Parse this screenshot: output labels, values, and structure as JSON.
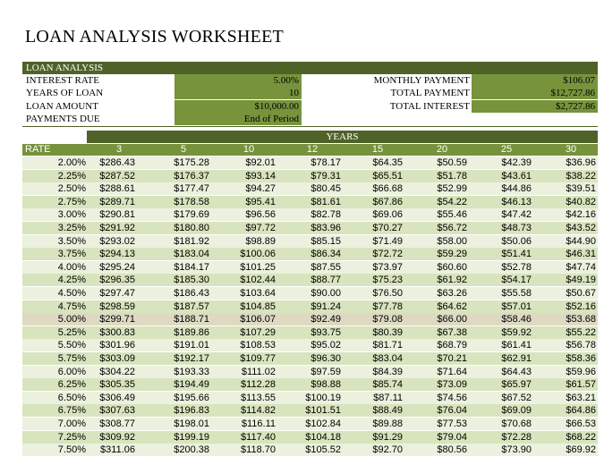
{
  "title": "LOAN ANALYSIS WORKSHEET",
  "analysis": {
    "header": "LOAN ANALYSIS",
    "left": [
      {
        "label": "INTEREST RATE",
        "value": "5.00%"
      },
      {
        "label": "YEARS OF LOAN",
        "value": "10"
      },
      {
        "label": "LOAN AMOUNT",
        "value": "$10,000.00"
      },
      {
        "label": "PAYMENTS DUE",
        "value": "End of Period"
      }
    ],
    "right": [
      {
        "label": "MONTHLY PAYMENT",
        "value": "$106.07"
      },
      {
        "label": "TOTAL PAYMENT",
        "value": "$12,727.86"
      },
      {
        "label": "TOTAL INTEREST",
        "value": "$2,727.86"
      }
    ]
  },
  "table": {
    "years_label": "YEARS",
    "rate_label": "RATE",
    "columns": [
      "3",
      "5",
      "10",
      "12",
      "15",
      "20",
      "25",
      "30"
    ],
    "rows": [
      {
        "rate": "2.00%",
        "values": [
          "$286.43",
          "$175.28",
          "$92.01",
          "$78.17",
          "$64.35",
          "$50.59",
          "$42.39",
          "$36.96"
        ]
      },
      {
        "rate": "2.25%",
        "values": [
          "$287.52",
          "$176.37",
          "$93.14",
          "$79.31",
          "$65.51",
          "$51.78",
          "$43.61",
          "$38.22"
        ]
      },
      {
        "rate": "2.50%",
        "values": [
          "$288.61",
          "$177.47",
          "$94.27",
          "$80.45",
          "$66.68",
          "$52.99",
          "$44.86",
          "$39.51"
        ]
      },
      {
        "rate": "2.75%",
        "values": [
          "$289.71",
          "$178.58",
          "$95.41",
          "$81.61",
          "$67.86",
          "$54.22",
          "$46.13",
          "$40.82"
        ]
      },
      {
        "rate": "3.00%",
        "values": [
          "$290.81",
          "$179.69",
          "$96.56",
          "$82.78",
          "$69.06",
          "$55.46",
          "$47.42",
          "$42.16"
        ]
      },
      {
        "rate": "3.25%",
        "values": [
          "$291.92",
          "$180.80",
          "$97.72",
          "$83.96",
          "$70.27",
          "$56.72",
          "$48.73",
          "$43.52"
        ]
      },
      {
        "rate": "3.50%",
        "values": [
          "$293.02",
          "$181.92",
          "$98.89",
          "$85.15",
          "$71.49",
          "$58.00",
          "$50.06",
          "$44.90"
        ]
      },
      {
        "rate": "3.75%",
        "values": [
          "$294.13",
          "$183.04",
          "$100.06",
          "$86.34",
          "$72.72",
          "$59.29",
          "$51.41",
          "$46.31"
        ]
      },
      {
        "rate": "4.00%",
        "values": [
          "$295.24",
          "$184.17",
          "$101.25",
          "$87.55",
          "$73.97",
          "$60.60",
          "$52.78",
          "$47.74"
        ]
      },
      {
        "rate": "4.25%",
        "values": [
          "$296.35",
          "$185.30",
          "$102.44",
          "$88.77",
          "$75.23",
          "$61.92",
          "$54.17",
          "$49.19"
        ]
      },
      {
        "rate": "4.50%",
        "values": [
          "$297.47",
          "$186.43",
          "$103.64",
          "$90.00",
          "$76.50",
          "$63.26",
          "$55.58",
          "$50.67"
        ]
      },
      {
        "rate": "4.75%",
        "values": [
          "$298.59",
          "$187.57",
          "$104.85",
          "$91.24",
          "$77.78",
          "$64.62",
          "$57.01",
          "$52.16"
        ]
      },
      {
        "rate": "5.00%",
        "values": [
          "$299.71",
          "$188.71",
          "$106.07",
          "$92.49",
          "$79.08",
          "$66.00",
          "$58.46",
          "$53.68"
        ]
      },
      {
        "rate": "5.25%",
        "values": [
          "$300.83",
          "$189.86",
          "$107.29",
          "$93.75",
          "$80.39",
          "$67.38",
          "$59.92",
          "$55.22"
        ]
      },
      {
        "rate": "5.50%",
        "values": [
          "$301.96",
          "$191.01",
          "$108.53",
          "$95.02",
          "$81.71",
          "$68.79",
          "$61.41",
          "$56.78"
        ]
      },
      {
        "rate": "5.75%",
        "values": [
          "$303.09",
          "$192.17",
          "$109.77",
          "$96.30",
          "$83.04",
          "$70.21",
          "$62.91",
          "$58.36"
        ]
      },
      {
        "rate": "6.00%",
        "values": [
          "$304.22",
          "$193.33",
          "$111.02",
          "$97.59",
          "$84.39",
          "$71.64",
          "$64.43",
          "$59.96"
        ]
      },
      {
        "rate": "6.25%",
        "values": [
          "$305.35",
          "$194.49",
          "$112.28",
          "$98.88",
          "$85.74",
          "$73.09",
          "$65.97",
          "$61.57"
        ]
      },
      {
        "rate": "6.50%",
        "values": [
          "$306.49",
          "$195.66",
          "$113.55",
          "$100.19",
          "$87.11",
          "$74.56",
          "$67.52",
          "$63.21"
        ]
      },
      {
        "rate": "6.75%",
        "values": [
          "$307.63",
          "$196.83",
          "$114.82",
          "$101.51",
          "$88.49",
          "$76.04",
          "$69.09",
          "$64.86"
        ]
      },
      {
        "rate": "7.00%",
        "values": [
          "$308.77",
          "$198.01",
          "$116.11",
          "$102.84",
          "$89.88",
          "$77.53",
          "$70.68",
          "$66.53"
        ]
      },
      {
        "rate": "7.25%",
        "values": [
          "$309.92",
          "$199.19",
          "$117.40",
          "$104.18",
          "$91.29",
          "$79.04",
          "$72.28",
          "$68.22"
        ]
      },
      {
        "rate": "7.50%",
        "values": [
          "$311.06",
          "$200.38",
          "$118.70",
          "$105.52",
          "$92.70",
          "$80.56",
          "$73.90",
          "$69.92"
        ]
      }
    ],
    "highlight_rate": "5.00%"
  },
  "colors": {
    "header_dark": "#4f6228",
    "header_mid": "#76923c",
    "input_fill": "#77933c",
    "row_light": "#ebf1de",
    "row_dark": "#d7e4bd",
    "row_highlight": "#ddd9c3"
  }
}
